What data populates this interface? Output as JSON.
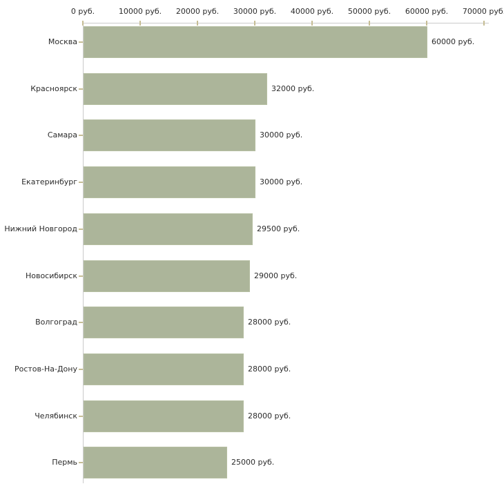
{
  "chart_data": {
    "type": "bar",
    "orientation": "horizontal",
    "title": "",
    "xlabel": "",
    "ylabel": "",
    "unit": "руб.",
    "categories": [
      "Москва",
      "Красноярск",
      "Самара",
      "Екатеринбург",
      "Нижний Новгород",
      "Новосибирск",
      "Волгоград",
      "Ростов-На-Дону",
      "Челябинск",
      "Пермь"
    ],
    "values": [
      60000,
      32000,
      30000,
      30000,
      29500,
      29000,
      28000,
      28000,
      28000,
      25000
    ],
    "value_labels": [
      "60000 руб.",
      "32000 руб.",
      "30000 руб.",
      "30000 руб.",
      "29500 руб.",
      "29000 руб.",
      "28000 руб.",
      "28000 руб.",
      "28000 руб.",
      "25000 руб."
    ],
    "x_ticks": [
      0,
      10000,
      20000,
      30000,
      40000,
      50000,
      60000,
      70000
    ],
    "x_tick_labels": [
      "0 руб.",
      "10000 руб.",
      "20000 руб.",
      "30000 руб.",
      "40000 руб.",
      "50000 руб.",
      "60000 руб.",
      "70000 руб."
    ],
    "xlim": [
      0,
      70000
    ],
    "legend_position": "none",
    "grid": "off",
    "axis_position": "top",
    "colors": {
      "bar_fill": "#acb59a",
      "bar_border": "#b6bfa2",
      "axis_line": "#c9c9c9",
      "tick_mark": "#c6bd94",
      "text": "#2b2b2b",
      "background": "#ffffff"
    }
  }
}
